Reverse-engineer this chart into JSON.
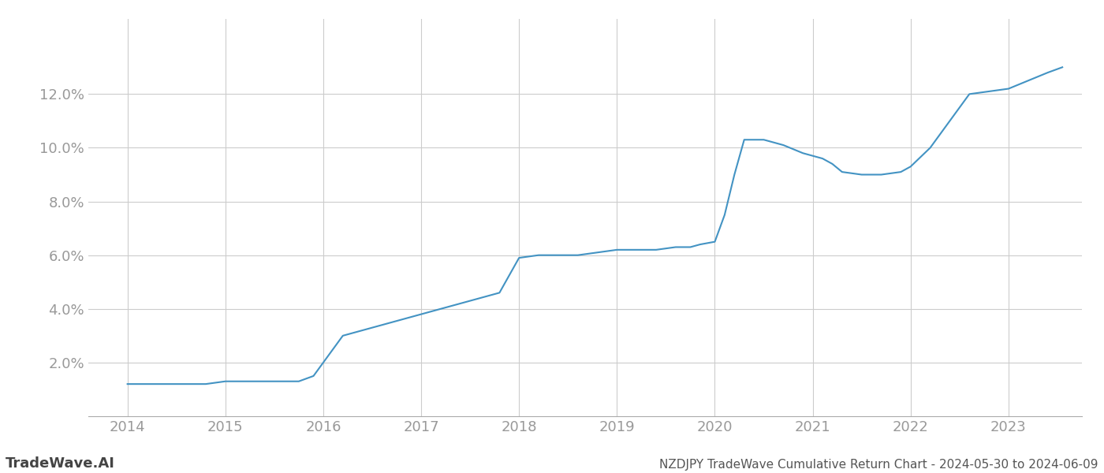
{
  "x_years": [
    2014.0,
    2014.2,
    2014.5,
    2014.8,
    2015.0,
    2015.2,
    2015.5,
    2015.75,
    2015.9,
    2016.0,
    2016.1,
    2016.2,
    2016.4,
    2016.6,
    2016.8,
    2017.0,
    2017.2,
    2017.4,
    2017.6,
    2017.8,
    2018.0,
    2018.2,
    2018.4,
    2018.6,
    2018.8,
    2019.0,
    2019.2,
    2019.4,
    2019.6,
    2019.75,
    2019.85,
    2020.0,
    2020.1,
    2020.2,
    2020.3,
    2020.5,
    2020.7,
    2020.9,
    2021.0,
    2021.1,
    2021.2,
    2021.3,
    2021.5,
    2021.7,
    2021.9,
    2022.0,
    2022.2,
    2022.4,
    2022.6,
    2022.8,
    2023.0,
    2023.2,
    2023.4,
    2023.55
  ],
  "y_values": [
    0.012,
    0.012,
    0.012,
    0.012,
    0.013,
    0.013,
    0.013,
    0.013,
    0.015,
    0.02,
    0.025,
    0.03,
    0.032,
    0.034,
    0.036,
    0.038,
    0.04,
    0.042,
    0.044,
    0.046,
    0.059,
    0.06,
    0.06,
    0.06,
    0.061,
    0.062,
    0.062,
    0.062,
    0.063,
    0.063,
    0.064,
    0.065,
    0.075,
    0.09,
    0.103,
    0.103,
    0.101,
    0.098,
    0.097,
    0.096,
    0.094,
    0.091,
    0.09,
    0.09,
    0.091,
    0.093,
    0.1,
    0.11,
    0.12,
    0.121,
    0.122,
    0.125,
    0.128,
    0.13
  ],
  "line_color": "#4393c3",
  "line_width": 1.5,
  "x_ticks": [
    2014,
    2015,
    2016,
    2017,
    2018,
    2019,
    2020,
    2021,
    2022,
    2023
  ],
  "x_tick_labels": [
    "2014",
    "2015",
    "2016",
    "2017",
    "2018",
    "2019",
    "2020",
    "2021",
    "2022",
    "2023"
  ],
  "y_ticks": [
    0.02,
    0.04,
    0.06,
    0.08,
    0.1,
    0.12
  ],
  "y_tick_labels": [
    "2.0%",
    "4.0%",
    "6.0%",
    "8.0%",
    "10.0%",
    "12.0%"
  ],
  "xlim": [
    2013.6,
    2023.75
  ],
  "ylim": [
    0.0,
    0.148
  ],
  "grid_color": "#cccccc",
  "background_color": "#ffffff",
  "tick_color": "#999999",
  "watermark_text": "TradeWave.AI",
  "watermark_color": "#444444",
  "footer_text": "NZDJPY TradeWave Cumulative Return Chart - 2024-05-30 to 2024-06-09",
  "footer_color": "#555555",
  "font_size_ticks": 13,
  "font_size_footer": 11,
  "font_size_watermark": 13
}
